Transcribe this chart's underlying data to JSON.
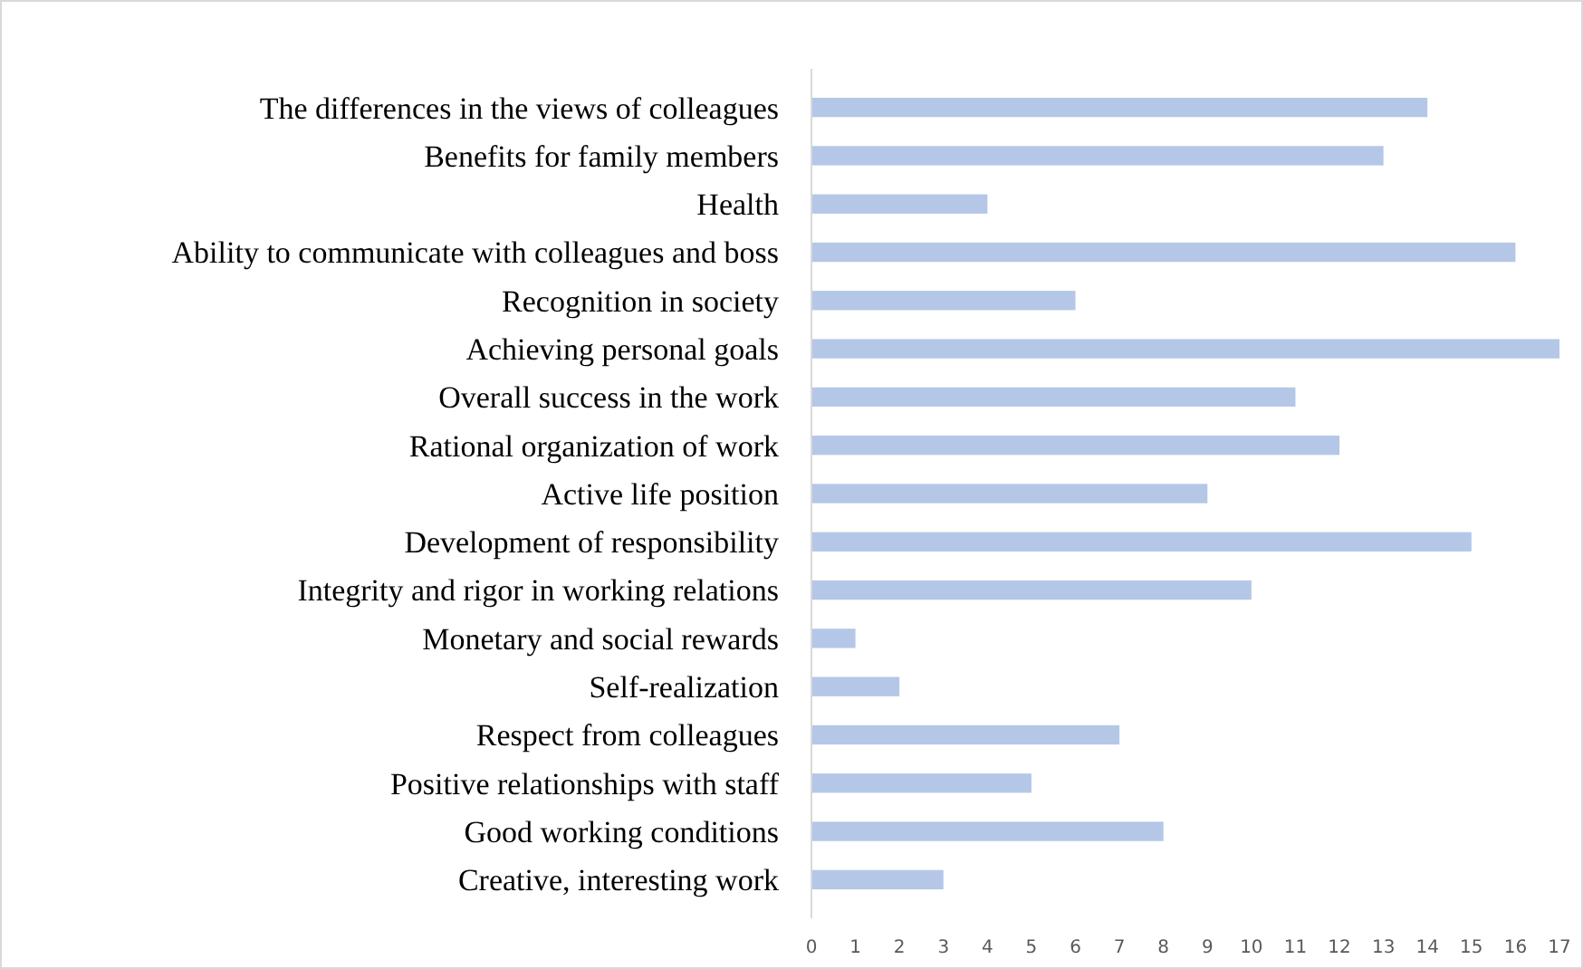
{
  "chart_data": {
    "type": "bar",
    "orientation": "horizontal",
    "categories": [
      "The differences in the views of colleagues",
      "Benefits for family members",
      "Health ",
      "Ability to communicate with colleagues and boss",
      "Recognition in society",
      "Achieving personal goals",
      "Overall success in the work",
      "Rational organization of work",
      "Active life position ",
      "Development of responsibility",
      "Integrity and rigor in working relations",
      "Monetary and social rewards ",
      "Self-realization ",
      "Respect from colleagues",
      "Positive relationships with staff",
      "Good working conditions",
      "Creative, interesting work"
    ],
    "values": [
      14,
      13,
      4,
      16,
      6,
      17,
      11,
      12,
      9,
      15,
      10,
      1,
      2,
      7,
      5,
      8,
      3
    ],
    "color": "#b4c7e7",
    "xlim": [
      0,
      17
    ],
    "xticks": [
      0,
      1,
      2,
      3,
      4,
      5,
      6,
      7,
      8,
      9,
      10,
      11,
      12,
      13,
      14,
      15,
      16,
      17
    ]
  }
}
